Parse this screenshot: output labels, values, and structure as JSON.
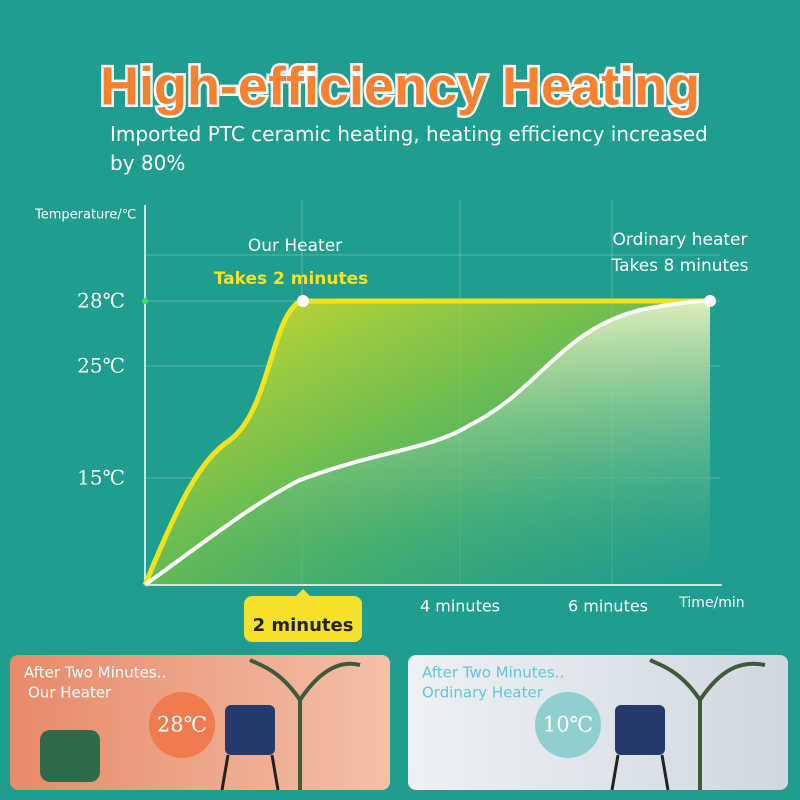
{
  "header": {
    "title": "High-efficiency Heating",
    "subtitle": "Imported PTC ceramic heating, heating efficiency increased by 80%"
  },
  "figure": {
    "y_axis_label": "Temperature/℃",
    "y_labels": [
      "28℃",
      "25℃",
      "15℃"
    ],
    "x_labels": [
      "4 minutes",
      "6 minutes"
    ],
    "x_axis_label": "Time/min",
    "our_heater": {
      "name": "Our Heater",
      "note": "Takes 2 minutes"
    },
    "ordinary_heater": {
      "name": "Ordinary heater",
      "note": "Takes 8 minutes"
    },
    "badge": "2 minutes"
  },
  "panels": [
    {
      "line1": "After Two Minutes..",
      "line2": "Our Heater",
      "temperature": "28℃"
    },
    {
      "line1": "After Two Minutes..",
      "line2": "Ordinary Heater",
      "temperature": "10℃"
    }
  ]
}
